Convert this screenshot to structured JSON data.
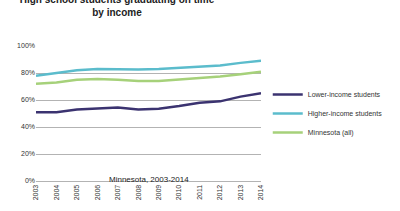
{
  "chart_data": {
    "type": "line",
    "title": "High school students graduating on time by income",
    "subtitle": "Minnesota, 2003-2014",
    "categories": [
      "2003",
      "2004",
      "2005",
      "2006",
      "2007",
      "2008",
      "2009",
      "2010",
      "2011",
      "2012",
      "2013",
      "2014"
    ],
    "series": [
      {
        "name": "Lower-income students",
        "color": "#3b3370",
        "values": [
          51,
          51,
          53,
          54,
          54.5,
          53,
          53.5,
          55.5,
          58,
          59,
          62.5,
          65
        ]
      },
      {
        "name": "Higher-income students",
        "color": "#5bbccc",
        "values": [
          78,
          80,
          82,
          83,
          82.5,
          82.5,
          83,
          84,
          85,
          85.5,
          87.5,
          89
        ]
      },
      {
        "name": "Minnesota (all)",
        "color": "#a6d17a",
        "values": [
          72,
          73,
          75,
          75.5,
          75,
          74,
          74,
          75,
          76.5,
          77.5,
          79,
          81
        ]
      }
    ],
    "ylim": [
      0,
      100
    ],
    "yticks": [
      {
        "value": 0,
        "label": "0%"
      },
      {
        "value": 20,
        "label": "20%"
      },
      {
        "value": 40,
        "label": "40%"
      },
      {
        "value": 60,
        "label": "60%"
      },
      {
        "value": 80,
        "label": "80%"
      },
      {
        "value": 100,
        "label": "100%"
      }
    ],
    "grid": true,
    "legend": "right"
  }
}
